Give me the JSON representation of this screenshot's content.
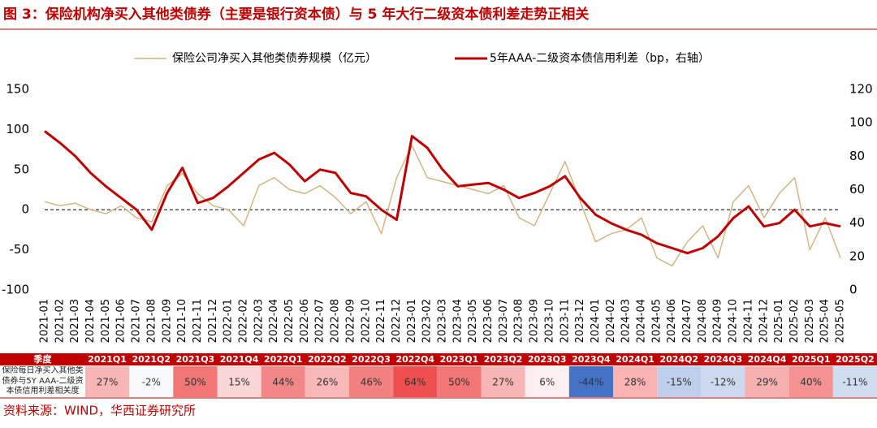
{
  "chart_data": {
    "type": "line",
    "title": "图 3：保险机构净买入其他类债券（主要是银行资本债）与 5 年大行二级资本债利差走势正相关",
    "categories": [
      "2021-01",
      "2021-02",
      "2021-03",
      "2021-04",
      "2021-05",
      "2021-06",
      "2021-07",
      "2021-08",
      "2021-09",
      "2021-10",
      "2021-11",
      "2021-12",
      "2022-01",
      "2022-02",
      "2022-03",
      "2022-04",
      "2022-05",
      "2022-06",
      "2022-07",
      "2022-08",
      "2022-09",
      "2022-10",
      "2022-11",
      "2022-12",
      "2023-01",
      "2023-02",
      "2023-03",
      "2023-04",
      "2023-05",
      "2023-06",
      "2023-07",
      "2023-08",
      "2023-09",
      "2023-10",
      "2023-11",
      "2023-12",
      "2024-01",
      "2024-02",
      "2024-03",
      "2024-04",
      "2024-05",
      "2024-06",
      "2024-07",
      "2024-08",
      "2024-09",
      "2024-10",
      "2024-11",
      "2024-12",
      "2025-01",
      "2025-02",
      "2025-03",
      "2025-04",
      "2025-05"
    ],
    "series": [
      {
        "name": "保险公司净买入其他类债券规模（亿元）",
        "color": "#d4b483",
        "width": 1.5,
        "values": [
          10,
          5,
          8,
          0,
          -5,
          5,
          -10,
          -15,
          30,
          45,
          20,
          5,
          0,
          -20,
          30,
          40,
          25,
          20,
          30,
          15,
          -5,
          10,
          -30,
          40,
          80,
          40,
          35,
          30,
          25,
          20,
          30,
          -10,
          -20,
          20,
          60,
          10,
          -40,
          -30,
          -25,
          -10,
          -60,
          -70,
          -40,
          -20,
          -60,
          10,
          30,
          -10,
          20,
          40,
          -50,
          -10,
          -60
        ]
      },
      {
        "name": "5年AAA-二级资本债信用利差（bp，右轴）",
        "color": "#c00000",
        "width": 3,
        "axis": "y2",
        "values": [
          95,
          88,
          80,
          70,
          62,
          55,
          48,
          36,
          58,
          73,
          52,
          55,
          62,
          70,
          78,
          82,
          75,
          65,
          72,
          70,
          58,
          56,
          48,
          42,
          92,
          85,
          72,
          62,
          63,
          64,
          60,
          55,
          58,
          62,
          68,
          55,
          45,
          40,
          36,
          33,
          28,
          25,
          22,
          25,
          32,
          43,
          50,
          38,
          40,
          48,
          38,
          40,
          38
        ]
      }
    ],
    "ylim": [
      -100,
      150
    ],
    "yticks": [
      -100,
      -50,
      0,
      50,
      100,
      150
    ],
    "y2lim": [
      0,
      120
    ],
    "y2ticks": [
      0,
      20,
      40,
      60,
      80,
      100,
      120
    ]
  },
  "table": {
    "header": "季度",
    "quarters": [
      "2021Q1",
      "2021Q2",
      "2021Q3",
      "2021Q4",
      "2022Q1",
      "2022Q2",
      "2022Q3",
      "2022Q4",
      "2023Q1",
      "2023Q2",
      "2023Q3",
      "2023Q4",
      "2024Q1",
      "2024Q2",
      "2024Q3",
      "2024Q4",
      "2025Q1",
      "2025Q2"
    ],
    "row_label": "保险每日净买入其他类债券与5Y AAA-二级资本债信用利差相关度",
    "values": [
      27,
      -2,
      50,
      15,
      44,
      26,
      46,
      64,
      50,
      27,
      6,
      -44,
      28,
      -15,
      -12,
      29,
      40,
      -11
    ],
    "value_labels": [
      "27%",
      "-2%",
      "50%",
      "15%",
      "44%",
      "26%",
      "46%",
      "64%",
      "50%",
      "27%",
      "6%",
      "-44%",
      "28%",
      "-15%",
      "-12%",
      "29%",
      "40%",
      "-11%"
    ],
    "colors": {
      "positive": "#ee5050",
      "negative": "#4472c4"
    }
  },
  "source": "资料来源：WIND，华西证券研究所"
}
